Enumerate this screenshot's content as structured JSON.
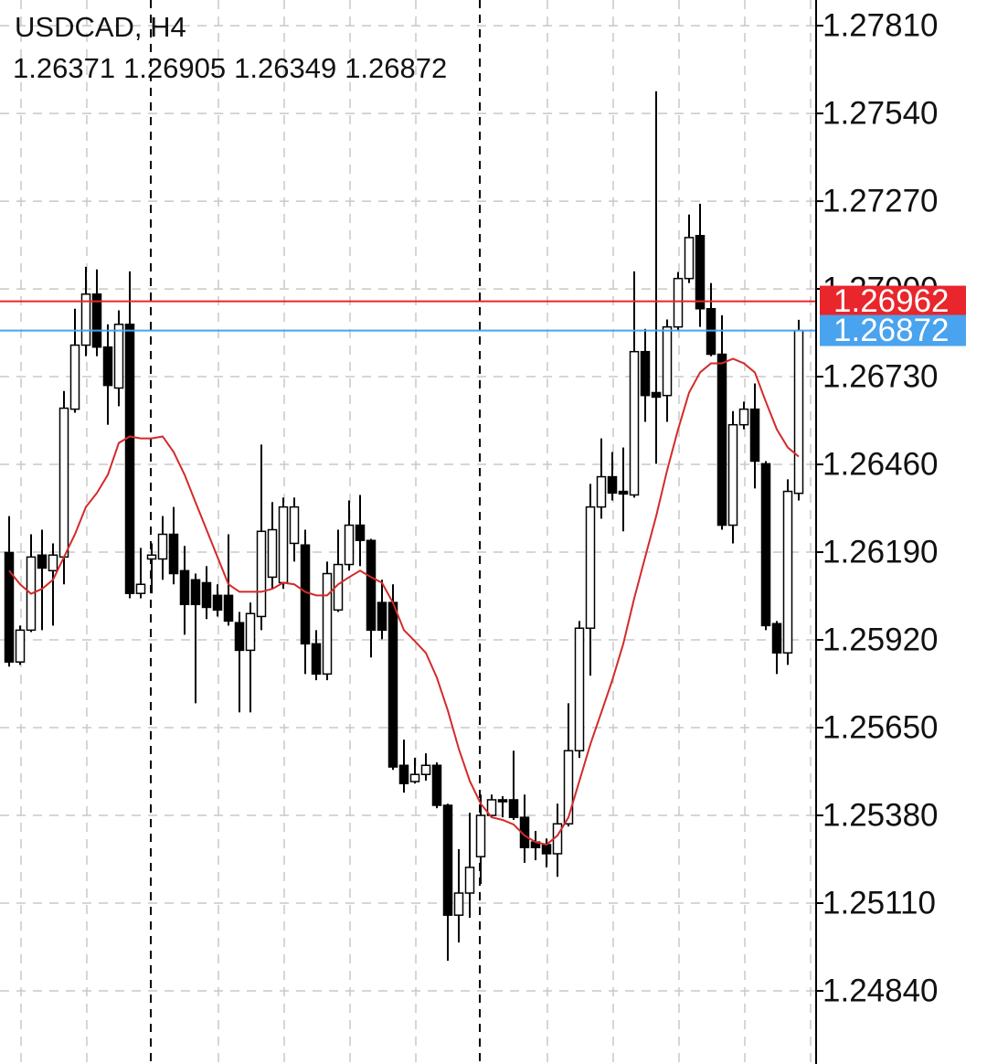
{
  "chart_data": {
    "type": "candlestick",
    "title": "USDCAD, H4",
    "candles": {
      "open": [
        1.26189,
        1.25852,
        1.2595,
        1.26181,
        1.26133,
        1.26175,
        1.2663,
        1.26827,
        1.26984,
        1.26821,
        1.26695,
        1.26891,
        1.26063,
        1.26169,
        1.26169,
        1.26245,
        1.26133,
        1.26105,
        1.26096,
        1.26057,
        1.26057,
        1.25973,
        1.25888,
        1.25992,
        1.26113,
        1.26096,
        1.26217,
        1.26212,
        1.25908,
        1.25815,
        1.26012,
        1.26152,
        1.26273,
        1.26226,
        1.26035,
        1.26035,
        1.25534,
        1.25484,
        1.25506,
        1.25534,
        1.25411,
        1.25073,
        1.25141,
        1.25253,
        1.2538,
        1.25428,
        1.25428,
        1.25374,
        1.25298,
        1.2529,
        1.25262,
        1.25354,
        1.25579,
        1.25956,
        1.26329,
        1.26422,
        1.26377,
        1.26366,
        1.26807,
        1.26681,
        1.26672,
        1.26883,
        1.27032,
        1.27164,
        1.26939,
        1.26799,
        1.26273,
        1.26582,
        1.2663,
        1.26462,
        1.2597,
        1.2588,
        1.26371
      ],
      "high": [
        1.26301,
        1.25964,
        1.26245,
        1.26259,
        1.26217,
        1.26686,
        1.26939,
        1.27068,
        1.2706,
        1.26891,
        1.26934,
        1.27054,
        1.26203,
        1.26217,
        1.26301,
        1.26329,
        1.26209,
        1.26124,
        1.26147,
        1.26091,
        1.26245,
        1.26006,
        1.26035,
        1.26521,
        1.26344,
        1.26358,
        1.26358,
        1.26259,
        1.2595,
        1.26161,
        1.26259,
        1.26349,
        1.26366,
        1.26231,
        1.26105,
        1.26091,
        1.25613,
        1.25557,
        1.25571,
        1.25543,
        1.25416,
        1.25276,
        1.25388,
        1.25444,
        1.25444,
        1.25439,
        1.25579,
        1.25444,
        1.25332,
        1.25309,
        1.25416,
        1.25725,
        1.25978,
        1.264,
        1.2654,
        1.26498,
        1.26512,
        1.27054,
        1.26877,
        1.27608,
        1.26906,
        1.27052,
        1.27229,
        1.27262,
        1.27018,
        1.26919,
        1.26624,
        1.26653,
        1.26709,
        1.2647,
        1.25978,
        1.26414,
        1.26905
      ],
      "low": [
        1.25838,
        1.25843,
        1.25944,
        1.2595,
        1.25964,
        1.26091,
        1.26619,
        1.26793,
        1.26793,
        1.26582,
        1.26639,
        1.26048,
        1.26048,
        1.26063,
        1.26105,
        1.26091,
        1.25936,
        1.25725,
        1.25984,
        1.25992,
        1.25964,
        1.25697,
        1.25697,
        1.2595,
        1.26077,
        1.26077,
        1.26161,
        1.25815,
        1.25796,
        1.25796,
        1.26006,
        1.26133,
        1.26147,
        1.25866,
        1.25922,
        1.2552,
        1.2545,
        1.25478,
        1.25487,
        1.25402,
        1.24933,
        1.24989,
        1.25065,
        1.25169,
        1.25374,
        1.25374,
        1.25366,
        1.25234,
        1.25242,
        1.2522,
        1.25191,
        1.25346,
        1.25557,
        1.2581,
        1.26293,
        1.26349,
        1.26254,
        1.26358,
        1.26591,
        1.26462,
        1.26591,
        1.26872,
        1.27018,
        1.26883,
        1.26793,
        1.26259,
        1.26217,
        1.26568,
        1.26386,
        1.2595,
        1.25815,
        1.25843,
        1.26349
      ],
      "close": [
        1.25852,
        1.2595,
        1.26175,
        1.26141,
        1.26181,
        1.26633,
        1.26827,
        1.26984,
        1.26821,
        1.26703,
        1.26891,
        1.26063,
        1.26091,
        1.26181,
        1.26245,
        1.26124,
        1.26029,
        1.26029,
        1.2602,
        1.26012,
        1.25978,
        1.25888,
        1.26001,
        1.26254,
        1.26259,
        1.26329,
        1.26329,
        1.25908,
        1.25815,
        1.26124,
        1.26152,
        1.26273,
        1.26226,
        1.2595,
        1.2595,
        1.25529,
        1.25478,
        1.25506,
        1.25534,
        1.25411,
        1.25073,
        1.25141,
        1.2522,
        1.2538,
        1.25428,
        1.25422,
        1.25374,
        1.25281,
        1.25281,
        1.25262,
        1.25354,
        1.25579,
        1.25956,
        1.26329,
        1.26422,
        1.26372,
        1.26369,
        1.26807,
        1.26672,
        1.26667,
        1.26883,
        1.27032,
        1.27158,
        1.26939,
        1.26799,
        1.26273,
        1.26582,
        1.2663,
        1.2647,
        1.25964,
        1.2588,
        1.26377,
        1.26872
      ],
      "up_color": "#ffffff",
      "down_color": "#000000"
    },
    "moving_average": {
      "color": "#d42a2a",
      "values": [
        1.26133,
        1.26091,
        1.26062,
        1.26077,
        1.26105,
        1.26175,
        1.26245,
        1.26329,
        1.26372,
        1.26428,
        1.26526,
        1.26546,
        1.2654,
        1.2654,
        1.26546,
        1.26498,
        1.26428,
        1.26343,
        1.26259,
        1.26175,
        1.26091,
        1.26068,
        1.26068,
        1.26068,
        1.26077,
        1.26096,
        1.26091,
        1.26068,
        1.26057,
        1.26057,
        1.26091,
        1.26113,
        1.26133,
        1.26113,
        1.26096,
        1.26034,
        1.2595,
        1.25916,
        1.2588,
        1.25804,
        1.25703,
        1.25585,
        1.25486,
        1.25416,
        1.25374,
        1.25366,
        1.25352,
        1.25318,
        1.25298,
        1.2529,
        1.25318,
        1.25374,
        1.25486,
        1.25599,
        1.25697,
        1.25796,
        1.25908,
        1.26048,
        1.26175,
        1.26301,
        1.26442,
        1.26568,
        1.26681,
        1.26743,
        1.26771,
        1.26771,
        1.26785,
        1.26771,
        1.26743,
        1.26653,
        1.26568,
        1.26512,
        1.26484
      ]
    },
    "price_lines": [
      {
        "value": 1.26962,
        "color": "#e8262b"
      },
      {
        "value": 1.26872,
        "color": "#4aa3ee"
      }
    ],
    "ylim": [
      1.24615,
      1.27889
    ],
    "yticks": [
      {
        "value": 1.2781,
        "label": "1.27810"
      },
      {
        "value": 1.2754,
        "label": "1.27540"
      },
      {
        "value": 1.2727,
        "label": "1.27270"
      },
      {
        "value": 1.27,
        "label": "1.27000"
      },
      {
        "value": 1.2673,
        "label": "1.26730"
      },
      {
        "value": 1.2646,
        "label": "1.26460"
      },
      {
        "value": 1.2619,
        "label": "1.26190"
      },
      {
        "value": 1.2592,
        "label": "1.25920"
      },
      {
        "value": 1.2565,
        "label": "1.25650"
      },
      {
        "value": 1.2538,
        "label": "1.25380"
      },
      {
        "value": 1.2511,
        "label": "1.25110"
      },
      {
        "value": 1.2484,
        "label": "1.24840"
      }
    ],
    "grid": true
  }
}
